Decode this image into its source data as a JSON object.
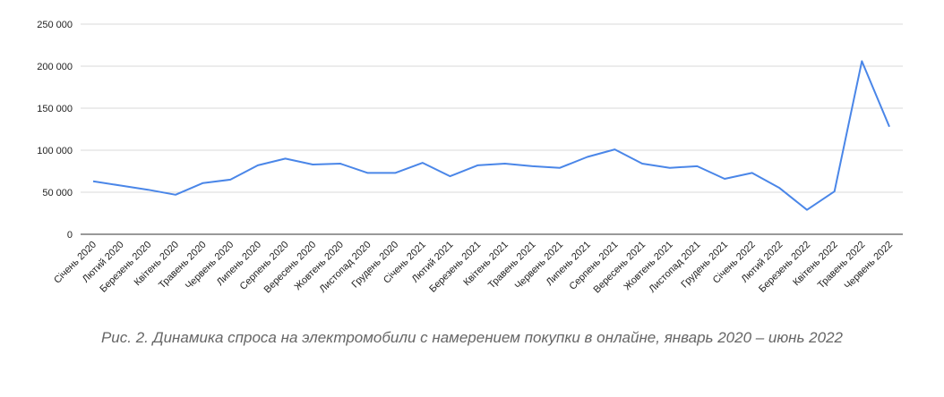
{
  "caption": "Рис. 2. Динамика спроса на электромобили с намерением покупки в онлайне, январь 2020 – июнь 2022",
  "chart_data": {
    "type": "line",
    "categories": [
      "Січень 2020",
      "Лютий 2020",
      "Березень 2020",
      "Квітень 2020",
      "Травень 2020",
      "Червень 2020",
      "Липень 2020",
      "Серпень 2020",
      "Вересень 2020",
      "Жовтень 2020",
      "Листопад 2020",
      "Грудень 2020",
      "Січень 2021",
      "Лютий 2021",
      "Березень 2021",
      "Квітень 2021",
      "Травень 2021",
      "Червень 2021",
      "Липень 2021",
      "Серпень 2021",
      "Вересень 2021",
      "Жовтень 2021",
      "Листопад 2021",
      "Грудень 2021",
      "Січень 2022",
      "Лютий 2022",
      "Березень 2022",
      "Квітень 2022",
      "Травень 2022",
      "Червень 2022"
    ],
    "values": [
      63000,
      58000,
      53000,
      47000,
      61000,
      65000,
      82000,
      90000,
      83000,
      84000,
      73000,
      73000,
      85000,
      69000,
      82000,
      84000,
      81000,
      79000,
      92000,
      101000,
      84000,
      79000,
      81000,
      66000,
      73000,
      55000,
      29000,
      51000,
      206000,
      128000
    ],
    "ylim": [
      0,
      250000
    ],
    "yticks": [
      0,
      50000,
      100000,
      150000,
      200000,
      250000
    ],
    "ytick_labels": [
      "0",
      "50 000",
      "100 000",
      "150 000",
      "200 000",
      "250 000"
    ],
    "grid": true,
    "line_color": "#4a86e8"
  }
}
